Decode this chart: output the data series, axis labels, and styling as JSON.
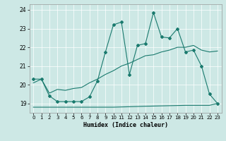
{
  "xlabel": "Humidex (Indice chaleur)",
  "xlim": [
    -0.5,
    23.5
  ],
  "ylim": [
    18.5,
    24.3
  ],
  "yticks": [
    19,
    20,
    21,
    22,
    23,
    24
  ],
  "xticks": [
    0,
    1,
    2,
    3,
    4,
    5,
    6,
    7,
    8,
    9,
    10,
    11,
    12,
    13,
    14,
    15,
    16,
    17,
    18,
    19,
    20,
    21,
    22,
    23
  ],
  "bg_color": "#cde8e5",
  "line_color": "#1a7a6e",
  "series1_x": [
    0,
    1,
    2,
    3,
    4,
    5,
    6,
    7,
    8,
    9,
    10,
    11,
    12,
    13,
    14,
    15,
    16,
    17,
    18,
    19,
    20,
    21,
    22,
    23
  ],
  "series1_y": [
    20.3,
    20.3,
    19.4,
    19.1,
    19.1,
    19.1,
    19.1,
    19.35,
    20.2,
    21.75,
    23.2,
    23.35,
    20.55,
    22.1,
    22.2,
    23.85,
    22.55,
    22.5,
    23.0,
    21.75,
    21.85,
    21.0,
    19.5,
    19.0
  ],
  "series2_x": [
    0,
    1,
    2,
    3,
    4,
    5,
    6,
    7,
    8,
    9,
    10,
    11,
    12,
    13,
    14,
    15,
    16,
    17,
    18,
    19,
    20,
    21,
    22,
    23
  ],
  "series2_y": [
    20.1,
    20.3,
    19.55,
    19.75,
    19.7,
    19.8,
    19.85,
    20.1,
    20.3,
    20.55,
    20.75,
    21.0,
    21.15,
    21.35,
    21.55,
    21.6,
    21.75,
    21.85,
    22.0,
    22.0,
    22.1,
    21.85,
    21.75,
    21.8
  ],
  "series3_x": [
    0,
    3,
    10,
    14,
    19,
    22,
    23
  ],
  "series3_y": [
    18.8,
    18.8,
    18.8,
    18.85,
    18.9,
    18.9,
    19.0
  ]
}
